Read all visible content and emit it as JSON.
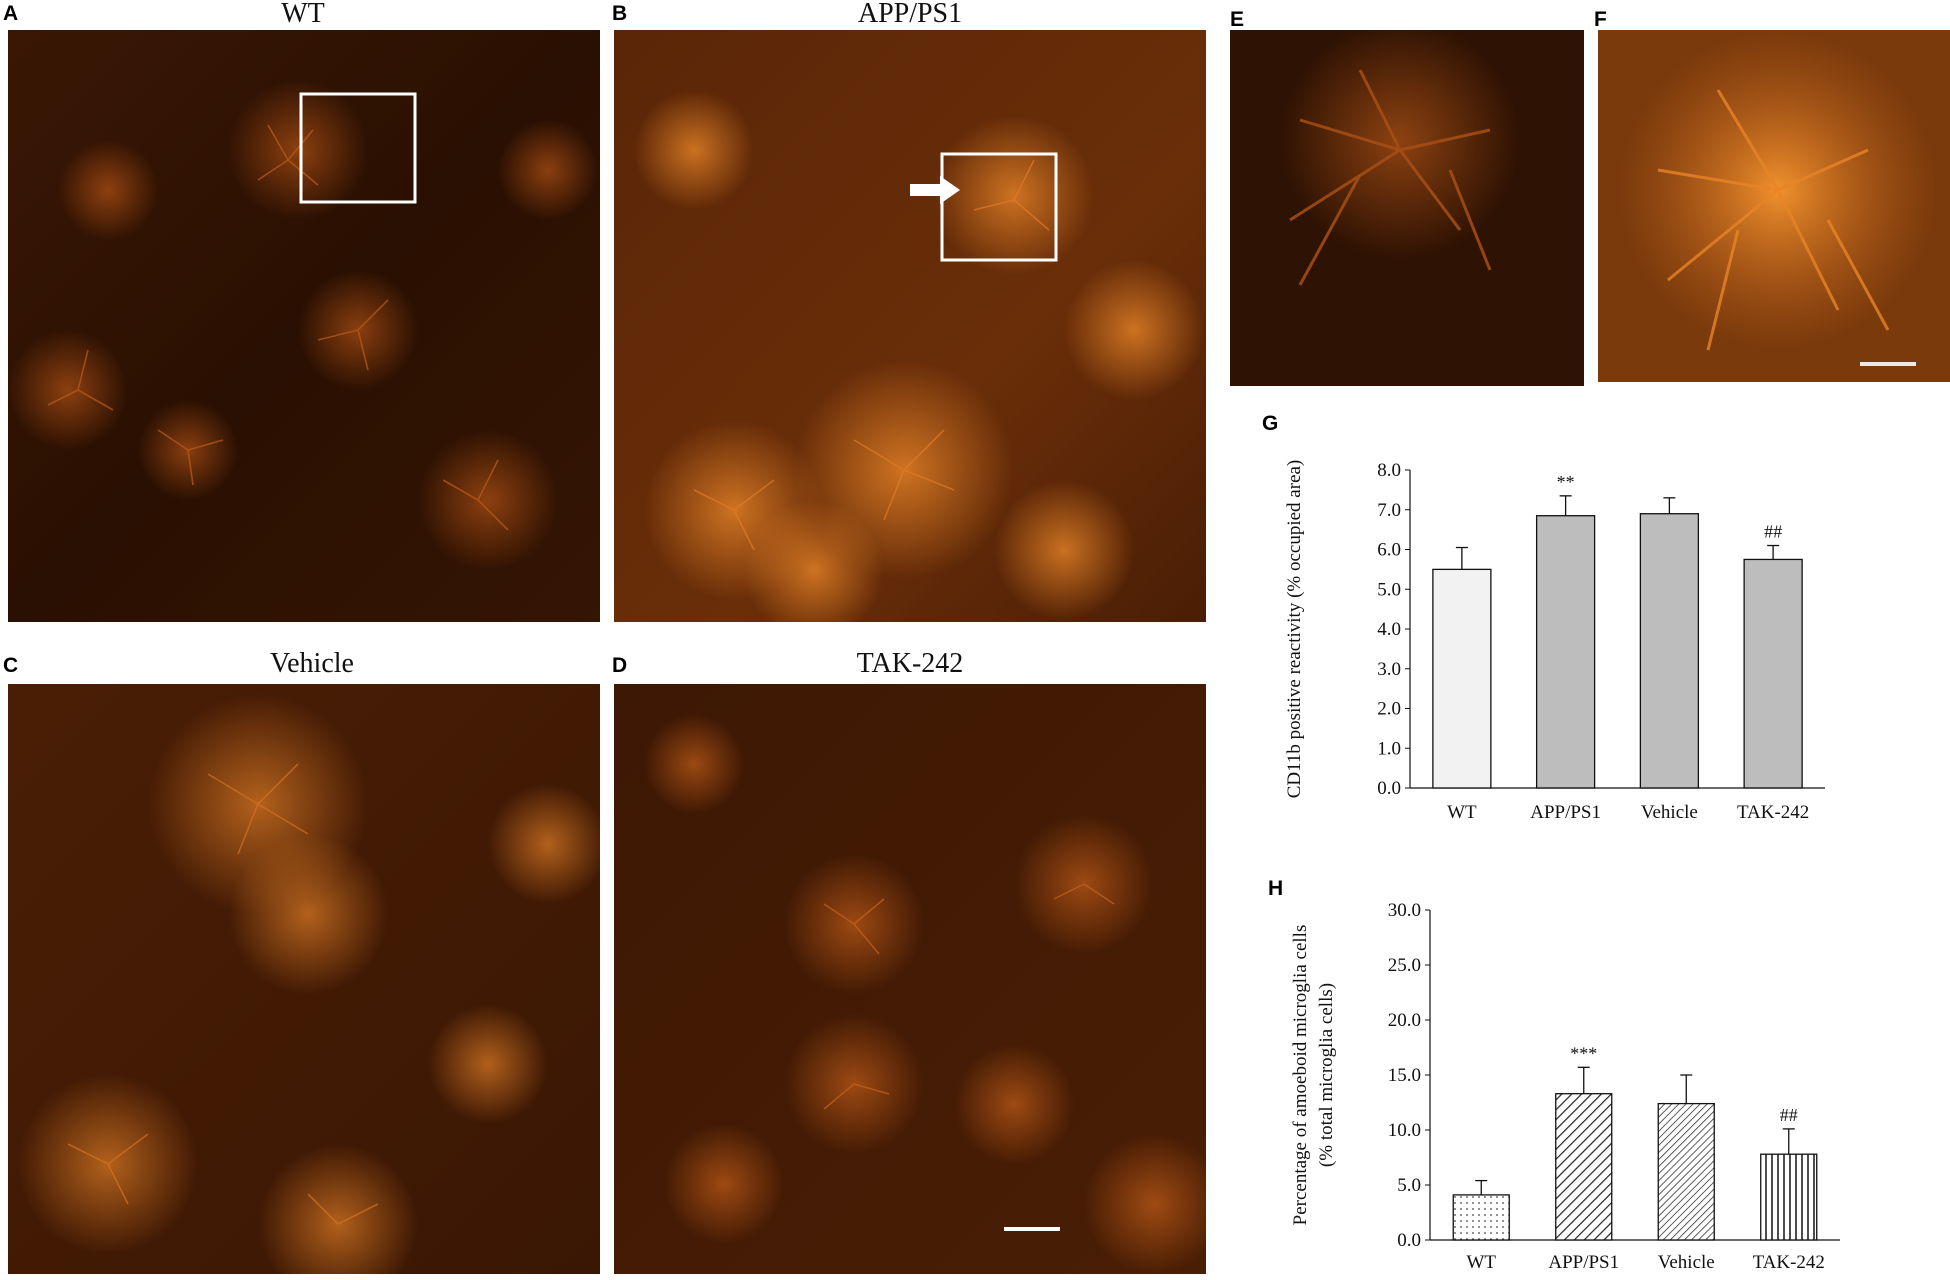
{
  "panels": {
    "A": {
      "letter": "A",
      "title": "WT"
    },
    "B": {
      "letter": "B",
      "title": "APP/PS1"
    },
    "C": {
      "letter": "C",
      "title": "Vehicle"
    },
    "D": {
      "letter": "D",
      "title": "TAK-242"
    },
    "E": {
      "letter": "E"
    },
    "F": {
      "letter": "F"
    },
    "G": {
      "letter": "G"
    },
    "H": {
      "letter": "H"
    }
  },
  "colors": {
    "tissue_dark": "#1c0a00",
    "stain": "#e8761e",
    "bar_gray": "#bdbdbd",
    "bar_light": "#f2f2f2"
  },
  "chart_data": [
    {
      "panel": "G",
      "type": "bar",
      "categories": [
        "WT",
        "APP/PS1",
        "Vehicle",
        "TAK-242"
      ],
      "values": [
        5.5,
        6.85,
        6.9,
        5.75
      ],
      "errors": [
        0.55,
        0.5,
        0.4,
        0.35
      ],
      "annotations": [
        "",
        "**",
        "",
        "##"
      ],
      "ylabel": "CD11b positive reactivity (% occupied area)",
      "ylim": [
        0,
        8
      ],
      "yticks": [
        "0.0",
        "1.0",
        "2.0",
        "3.0",
        "4.0",
        "5.0",
        "6.0",
        "7.0",
        "8.0"
      ],
      "fills": [
        "light",
        "gray",
        "gray",
        "gray"
      ],
      "grid": false
    },
    {
      "panel": "H",
      "type": "bar",
      "categories": [
        "WT",
        "APP/PS1",
        "Vehicle",
        "TAK-242"
      ],
      "values": [
        4.1,
        13.3,
        12.4,
        7.8
      ],
      "errors": [
        1.3,
        2.4,
        2.6,
        2.3
      ],
      "annotations": [
        "",
        "***",
        "",
        "##"
      ],
      "ylabel": [
        "Percentage of amoeboid microglia cells",
        "(% total microglia cells)"
      ],
      "ylim": [
        0,
        30
      ],
      "yticks": [
        "0.0",
        "5.0",
        "10.0",
        "15.0",
        "20.0",
        "25.0",
        "30.0"
      ],
      "fills": [
        "dots",
        "diag",
        "diag-dense",
        "vertical"
      ],
      "grid": false
    }
  ]
}
